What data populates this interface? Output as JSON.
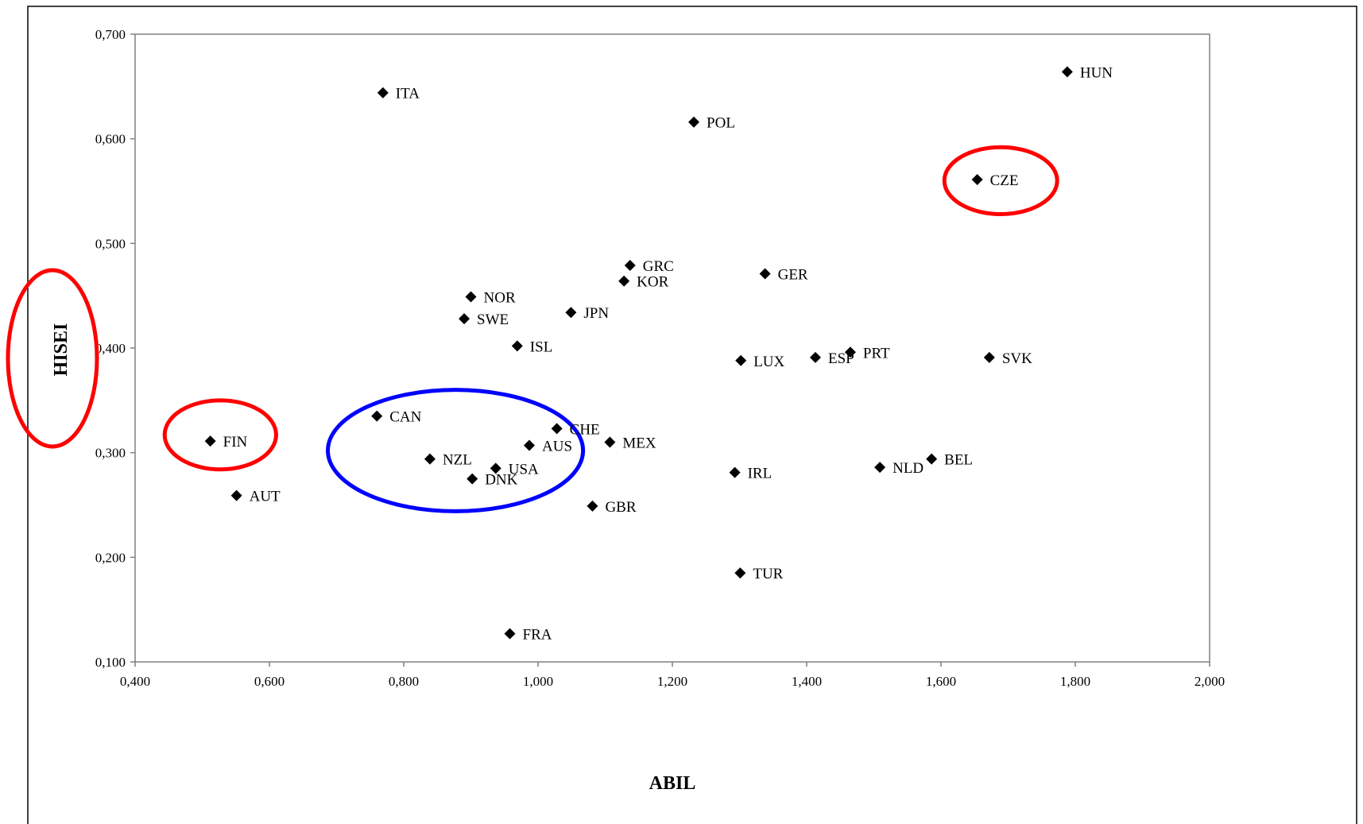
{
  "chart_data": {
    "type": "scatter",
    "title": "",
    "xlabel": "ABIL",
    "ylabel": "HISEI",
    "xlim": [
      0.4,
      2.0
    ],
    "ylim": [
      0.1,
      0.7
    ],
    "x_ticks": [
      "0,400",
      "0,600",
      "0,800",
      "1,000",
      "1,200",
      "1,400",
      "1,600",
      "1,800",
      "2,000"
    ],
    "y_ticks": [
      "0,100",
      "0,200",
      "0,300",
      "0,400",
      "0,500",
      "0,600",
      "0,700"
    ],
    "grid": false,
    "legend": "none",
    "marker": "diamond",
    "marker_color": "#000000",
    "points": [
      {
        "label": "HUN",
        "x": 1.788,
        "y": 0.664
      },
      {
        "label": "ITA",
        "x": 0.769,
        "y": 0.644
      },
      {
        "label": "POL",
        "x": 1.232,
        "y": 0.616
      },
      {
        "label": "CZE",
        "x": 1.654,
        "y": 0.561
      },
      {
        "label": "GRC",
        "x": 1.137,
        "y": 0.479
      },
      {
        "label": "GER",
        "x": 1.338,
        "y": 0.471
      },
      {
        "label": "KOR",
        "x": 1.128,
        "y": 0.464
      },
      {
        "label": "NOR",
        "x": 0.9,
        "y": 0.449
      },
      {
        "label": "JPN",
        "x": 1.049,
        "y": 0.434
      },
      {
        "label": "SWE",
        "x": 0.89,
        "y": 0.428
      },
      {
        "label": "ISL",
        "x": 0.969,
        "y": 0.402
      },
      {
        "label": "PRT",
        "x": 1.465,
        "y": 0.396
      },
      {
        "label": "ESP",
        "x": 1.413,
        "y": 0.391
      },
      {
        "label": "SVK",
        "x": 1.672,
        "y": 0.391
      },
      {
        "label": "LUX",
        "x": 1.302,
        "y": 0.388
      },
      {
        "label": "CAN",
        "x": 0.76,
        "y": 0.335
      },
      {
        "label": "CHE",
        "x": 1.028,
        "y": 0.323
      },
      {
        "label": "FIN",
        "x": 0.512,
        "y": 0.311
      },
      {
        "label": "MEX",
        "x": 1.107,
        "y": 0.31
      },
      {
        "label": "AUS",
        "x": 0.987,
        "y": 0.307
      },
      {
        "label": "NZL",
        "x": 0.839,
        "y": 0.294
      },
      {
        "label": "BEL",
        "x": 1.586,
        "y": 0.294
      },
      {
        "label": "NLD",
        "x": 1.509,
        "y": 0.286
      },
      {
        "label": "USA",
        "x": 0.937,
        "y": 0.285
      },
      {
        "label": "IRL",
        "x": 1.293,
        "y": 0.281
      },
      {
        "label": "DNK",
        "x": 0.902,
        "y": 0.275
      },
      {
        "label": "AUT",
        "x": 0.551,
        "y": 0.259
      },
      {
        "label": "GBR",
        "x": 1.081,
        "y": 0.249
      },
      {
        "label": "TUR",
        "x": 1.301,
        "y": 0.185
      },
      {
        "label": "FRA",
        "x": 0.958,
        "y": 0.127
      }
    ],
    "annotations": [
      {
        "name": "czech-highlight-ellipse",
        "shape": "ellipse",
        "color": "#ff0000",
        "cx": 1.689,
        "cy": 0.56,
        "rx": 0.084,
        "ry": 0.032
      },
      {
        "name": "finland-highlight-ellipse",
        "shape": "ellipse",
        "color": "#ff0000",
        "cx": 0.527,
        "cy": 0.317,
        "rx": 0.083,
        "ry": 0.033
      },
      {
        "name": "cluster-highlight-ellipse",
        "shape": "ellipse",
        "color": "#0000ff",
        "cx": 0.877,
        "cy": 0.302,
        "rx": 0.19,
        "ry": 0.058
      }
    ],
    "axis_title_highlight": {
      "name": "hisei-label-highlight-ellipse",
      "color": "#ff0000"
    }
  }
}
